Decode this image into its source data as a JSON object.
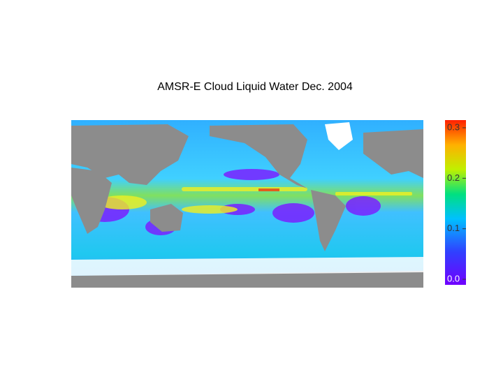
{
  "title": "AMSR-E  Cloud Liquid Water   Dec. 2004",
  "colorbar": {
    "range": [
      0,
      0.3
    ],
    "ticks": [
      {
        "value": 0,
        "label": "0.0"
      },
      0.1,
      0.2,
      0.3
    ]
  }
}
